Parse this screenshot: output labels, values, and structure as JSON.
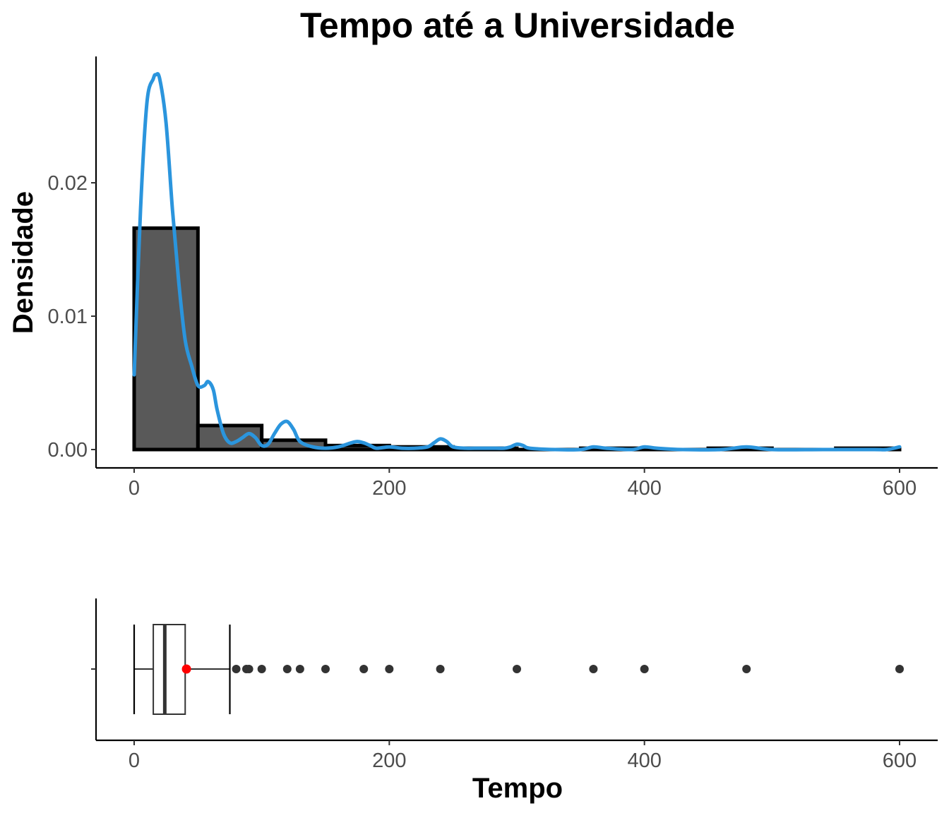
{
  "chart_data": [
    {
      "type": "histogram",
      "title": "Tempo até a Universidade",
      "xlabel": "",
      "ylabel": "Densidade",
      "xlim": [
        -15,
        630
      ],
      "ylim": [
        -0.0014,
        0.0295
      ],
      "x_ticks": [
        0,
        200,
        400,
        600
      ],
      "x_tick_labels": [
        "0",
        "200",
        "400",
        "600"
      ],
      "y_ticks": [
        0.0,
        0.01,
        0.02
      ],
      "y_tick_labels": [
        "0.00",
        "0.01",
        "0.02"
      ],
      "grid": false,
      "bin_width": 50,
      "bins": [
        {
          "start": 0,
          "end": 50,
          "density": 0.0166
        },
        {
          "start": 50,
          "end": 100,
          "density": 0.0018
        },
        {
          "start": 100,
          "end": 150,
          "density": 0.0007
        },
        {
          "start": 150,
          "end": 200,
          "density": 0.0003
        },
        {
          "start": 200,
          "end": 250,
          "density": 0.0002
        },
        {
          "start": 250,
          "end": 300,
          "density": 0.0001
        },
        {
          "start": 300,
          "end": 350,
          "density": 0.0
        },
        {
          "start": 350,
          "end": 400,
          "density": 0.0001
        },
        {
          "start": 400,
          "end": 450,
          "density": 0.0
        },
        {
          "start": 450,
          "end": 500,
          "density": 0.0001
        },
        {
          "start": 500,
          "end": 550,
          "density": 0.0
        },
        {
          "start": 550,
          "end": 600,
          "density": 0.0001
        }
      ],
      "bar_fill": "#595959",
      "bar_stroke": "#000000",
      "density_curve": {
        "color": "#2b95dd",
        "x": [
          0,
          5,
          10,
          15,
          17,
          20,
          25,
          30,
          35,
          40,
          45,
          50,
          55,
          58,
          62,
          65,
          70,
          75,
          80,
          85,
          90,
          95,
          100,
          105,
          110,
          115,
          120,
          125,
          130,
          140,
          150,
          160,
          170,
          175,
          180,
          185,
          190,
          200,
          210,
          220,
          230,
          235,
          240,
          245,
          250,
          260,
          270,
          280,
          290,
          295,
          300,
          305,
          310,
          330,
          350,
          360,
          370,
          390,
          400,
          410,
          430,
          460,
          480,
          500,
          540,
          580,
          590,
          600
        ],
        "y": [
          0.0056,
          0.018,
          0.026,
          0.0278,
          0.0281,
          0.0278,
          0.0245,
          0.018,
          0.0125,
          0.0082,
          0.0063,
          0.0048,
          0.0048,
          0.0051,
          0.0045,
          0.003,
          0.0012,
          0.0005,
          0.0006,
          0.0009,
          0.0012,
          0.0009,
          0.0003,
          0.0004,
          0.0012,
          0.0019,
          0.0021,
          0.0015,
          0.0006,
          0.0002,
          0.0001,
          0.0002,
          0.0005,
          0.0006,
          0.0005,
          0.0003,
          0.0001,
          0.0002,
          0.0001,
          0.0001,
          0.0002,
          0.0005,
          0.0008,
          0.0006,
          0.0002,
          0.0001,
          0.0001,
          0.0001,
          0.0001,
          0.0002,
          0.0004,
          0.0003,
          0.0001,
          0.0,
          0.0,
          0.0002,
          0.0001,
          0.0,
          0.0002,
          0.0001,
          0.0,
          0.0,
          0.0002,
          0.0,
          0.0,
          0.0,
          0.0,
          0.0002
        ]
      }
    },
    {
      "type": "boxplot",
      "xlabel": "Tempo",
      "ylabel": "",
      "xlim": [
        -15,
        630
      ],
      "x_ticks": [
        0,
        200,
        400,
        600
      ],
      "x_tick_labels": [
        "0",
        "200",
        "400",
        "600"
      ],
      "grid": false,
      "min": 0,
      "q1": 15,
      "median": 24,
      "q3": 40,
      "whisker_low": 0,
      "whisker_high": 75,
      "mean": 41,
      "mean_color": "#ff0000",
      "outliers": [
        80,
        88,
        90,
        100,
        120,
        130,
        150,
        180,
        200,
        240,
        300,
        360,
        400,
        480,
        600
      ],
      "outlier_color": "#333333"
    }
  ]
}
